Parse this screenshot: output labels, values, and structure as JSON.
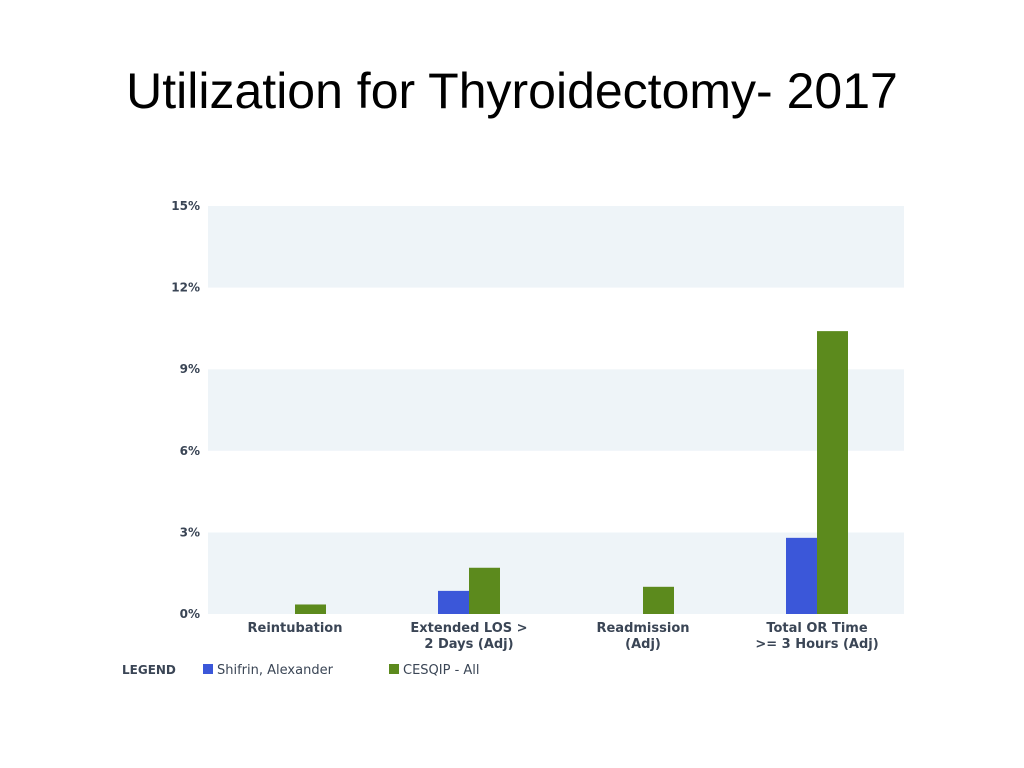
{
  "slide": {
    "title": "Utilization for Thyroidectomy- 2017"
  },
  "chart_data": {
    "type": "bar",
    "title": "",
    "xlabel": "",
    "ylabel": "",
    "ylim": [
      0,
      15
    ],
    "y_ticks": [
      "0%",
      "3%",
      "6%",
      "9%",
      "12%",
      "15%"
    ],
    "y_tick_values": [
      0,
      3,
      6,
      9,
      12,
      15
    ],
    "categories": [
      [
        "Reintubation"
      ],
      [
        "Extended LOS >",
        "2 Days (Adj)"
      ],
      [
        "Readmission",
        "(Adj)"
      ],
      [
        "Total OR Time",
        ">= 3 Hours (Adj)"
      ]
    ],
    "series": [
      {
        "name": "Shifrin, Alexander",
        "color": "#3b57d9",
        "values": [
          0,
          0.85,
          0,
          2.8
        ]
      },
      {
        "name": "CESQIP - All",
        "color": "#5c8a1d",
        "values": [
          0.35,
          1.7,
          1.0,
          10.4
        ]
      }
    ],
    "legend": {
      "title": "LEGEND",
      "placement": "bottom-left"
    },
    "grid": true,
    "band_color": "#eef4f8"
  }
}
